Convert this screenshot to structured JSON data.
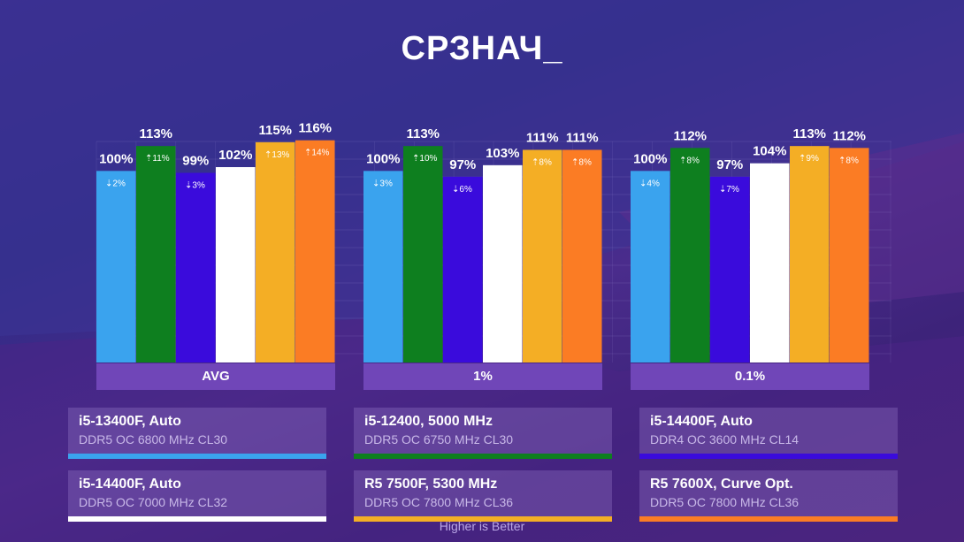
{
  "title": "СРЗНАЧ_",
  "footer": "Higher is Better",
  "chart_data": {
    "type": "bar",
    "categories": [
      "AVG",
      "1%",
      "0.1%"
    ],
    "ylim": [
      0,
      120
    ],
    "series": [
      {
        "name": "i5-13400F, Auto",
        "spec": "DDR5 OC 6800 MHz CL30",
        "color": "#3aa3ee",
        "values": [
          100,
          100,
          100
        ],
        "delta": [
          "2%",
          "3%",
          "4%"
        ],
        "direction": [
          "down",
          "down",
          "down"
        ]
      },
      {
        "name": "i5-12400, 5000 MHz",
        "spec": "DDR5 OC 6750 MHz CL30",
        "color": "#0e7f1f",
        "values": [
          113,
          113,
          112
        ],
        "delta": [
          "11%",
          "10%",
          "8%"
        ],
        "direction": [
          "up",
          "up",
          "up"
        ]
      },
      {
        "name": "i5-14400F, Auto",
        "spec": "DDR4 OC 3600 MHz CL14",
        "color": "#3a0bdc",
        "values": [
          99,
          97,
          97
        ],
        "delta": [
          "3%",
          "6%",
          "7%"
        ],
        "direction": [
          "down",
          "down",
          "down"
        ]
      },
      {
        "name": "i5-14400F, Auto",
        "spec": "DDR5 OC 7000 MHz CL32",
        "color": "#ffffff",
        "values": [
          102,
          103,
          104
        ],
        "delta": [
          "",
          "",
          ""
        ],
        "direction": [
          "",
          "",
          ""
        ]
      },
      {
        "name": "R5 7500F, 5300 MHz",
        "spec": "DDR5 OC 7800 MHz CL36",
        "color": "#f4ae25",
        "values": [
          115,
          111,
          113
        ],
        "delta": [
          "13%",
          "8%",
          "9%"
        ],
        "direction": [
          "up",
          "up",
          "up"
        ]
      },
      {
        "name": "R5 7600X, Curve Opt.",
        "spec": "DDR5 OC 7800 MHz CL36",
        "color": "#fb7c24",
        "values": [
          116,
          111,
          112
        ],
        "delta": [
          "14%",
          "8%",
          "8%"
        ],
        "direction": [
          "up",
          "up",
          "up"
        ]
      }
    ],
    "value_suffix": "%"
  }
}
